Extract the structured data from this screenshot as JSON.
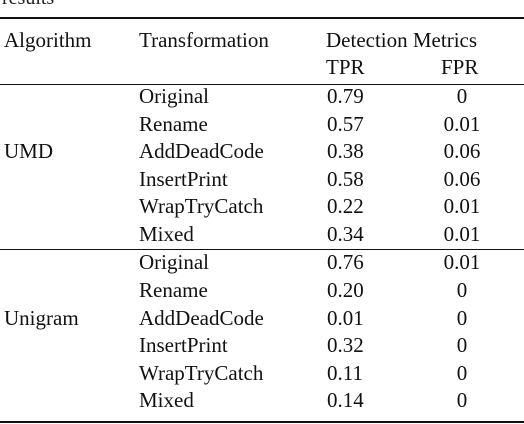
{
  "caption_fragment": "results",
  "header": {
    "algorithm": "Algorithm",
    "transformation": "Transformation",
    "detection_metrics": "Detection Metrics",
    "tpr": "TPR",
    "fpr": "FPR"
  },
  "groups": [
    {
      "algorithm": "UMD",
      "rows": [
        {
          "transformation": "Original",
          "tpr": "0.79",
          "fpr": "0"
        },
        {
          "transformation": "Rename",
          "tpr": "0.57",
          "fpr": "0.01"
        },
        {
          "transformation": "AddDeadCode",
          "tpr": "0.38",
          "fpr": "0.06"
        },
        {
          "transformation": "InsertPrint",
          "tpr": "0.58",
          "fpr": "0.06"
        },
        {
          "transformation": "WrapTryCatch",
          "tpr": "0.22",
          "fpr": "0.01"
        },
        {
          "transformation": "Mixed",
          "tpr": "0.34",
          "fpr": "0.01"
        }
      ]
    },
    {
      "algorithm": "Unigram",
      "rows": [
        {
          "transformation": "Original",
          "tpr": "0.76",
          "fpr": "0.01"
        },
        {
          "transformation": "Rename",
          "tpr": "0.20",
          "fpr": "0"
        },
        {
          "transformation": "AddDeadCode",
          "tpr": "0.01",
          "fpr": "0"
        },
        {
          "transformation": "InsertPrint",
          "tpr": "0.32",
          "fpr": "0"
        },
        {
          "transformation": "WrapTryCatch",
          "tpr": "0.11",
          "fpr": "0"
        },
        {
          "transformation": "Mixed",
          "tpr": "0.14",
          "fpr": "0"
        }
      ]
    }
  ]
}
